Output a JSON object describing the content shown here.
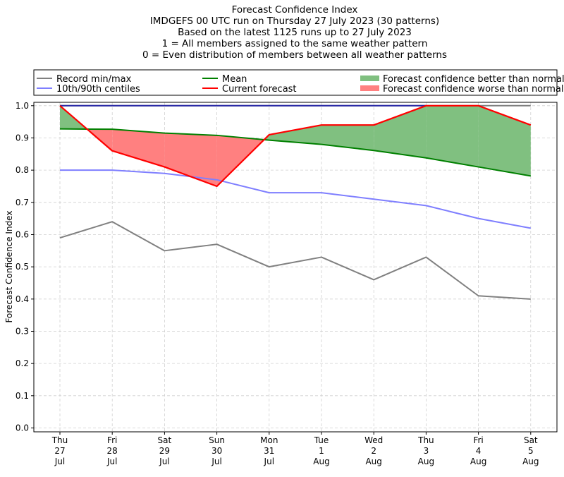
{
  "chart_data": {
    "type": "line",
    "title_lines": [
      "Forecast Confidence Index",
      "IMDGEFS 00 UTC run on Thursday 27 July 2023 (30 patterns)",
      "Based on the latest 1125 runs up to 27 July 2023",
      "1 = All members assigned to the same weather pattern",
      "0 = Even distribution of members between all weather patterns"
    ],
    "ylabel": "Forecast Confidence Index",
    "xlabel": "",
    "ylim": [
      0,
      1.0
    ],
    "yticks": [
      "0.0",
      "0.1",
      "0.2",
      "0.3",
      "0.4",
      "0.5",
      "0.6",
      "0.7",
      "0.8",
      "0.9",
      "1.0"
    ],
    "grid": true,
    "legend_placement": "top (above plot)",
    "categories": [
      [
        "Thu",
        "27",
        "Jul"
      ],
      [
        "Fri",
        "28",
        "Jul"
      ],
      [
        "Sat",
        "29",
        "Jul"
      ],
      [
        "Sun",
        "30",
        "Jul"
      ],
      [
        "Mon",
        "31",
        "Jul"
      ],
      [
        "Tue",
        "1",
        "Aug"
      ],
      [
        "Wed",
        "2",
        "Aug"
      ],
      [
        "Thu",
        "3",
        "Aug"
      ],
      [
        "Fri",
        "4",
        "Aug"
      ],
      [
        "Sat",
        "5",
        "Aug"
      ]
    ],
    "series": [
      {
        "name": "Record min/max",
        "color": "#808080",
        "min": [
          0.59,
          0.64,
          0.55,
          0.57,
          0.5,
          0.53,
          0.46,
          0.53,
          0.41,
          0.4
        ],
        "max": [
          1.0,
          1.0,
          1.0,
          1.0,
          1.0,
          1.0,
          1.0,
          1.0,
          1.0,
          1.0
        ]
      },
      {
        "name": "10th/90th centiles",
        "color": "#7f7fff",
        "p10": [
          0.8,
          0.8,
          0.79,
          0.77,
          0.73,
          0.73,
          0.71,
          0.69,
          0.65,
          0.62
        ],
        "p90": [
          1.0,
          1.0,
          1.0,
          1.0,
          1.0,
          1.0,
          1.0,
          1.0,
          null,
          null
        ]
      },
      {
        "name": "Mean",
        "color": "#008000",
        "values": [
          0.928,
          0.927,
          0.915,
          0.908,
          0.893,
          0.88,
          0.861,
          0.838,
          0.81,
          0.782
        ]
      },
      {
        "name": "Current forecast",
        "color": "#ff0000",
        "values": [
          1.0,
          0.86,
          0.81,
          0.75,
          0.91,
          0.94,
          0.94,
          1.0,
          1.0,
          0.94
        ]
      }
    ],
    "fills": [
      {
        "name": "Forecast confidence better than normal",
        "color": "#80c080"
      },
      {
        "name": "Forecast confidence worse than normal",
        "color": "#ff8080"
      }
    ]
  }
}
